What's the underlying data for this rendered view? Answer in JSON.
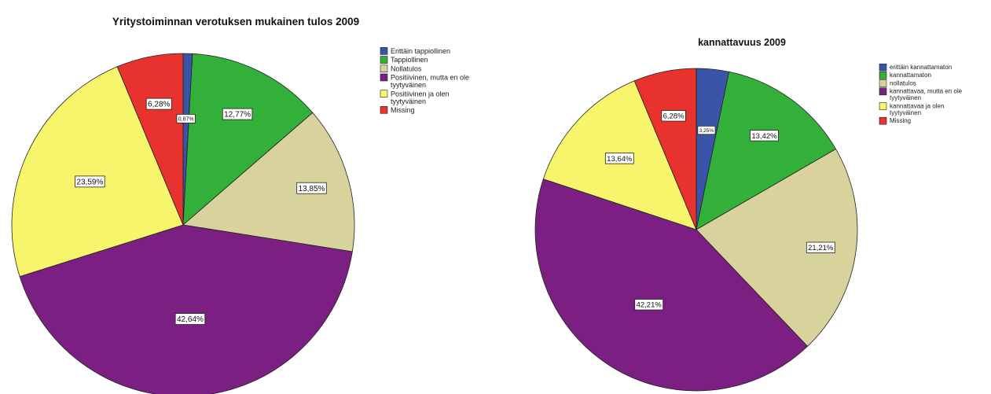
{
  "chart_data": [
    {
      "type": "pie",
      "title": "Yritystoiminnan verotuksen mukainen tulos 2009",
      "legend_position": "right",
      "slices": [
        {
          "label": "Erittäin tappiollinen",
          "value": 0.87,
          "display": "0,87%",
          "color": "#3a55a8"
        },
        {
          "label": "Tappiollinen",
          "value": 12.77,
          "display": "12,77%",
          "color": "#33b03a"
        },
        {
          "label": "Nollatulos",
          "value": 13.85,
          "display": "13,85%",
          "color": "#d8d29c"
        },
        {
          "label": "Positiivinen, mutta en ole tyytyväinen",
          "value": 42.64,
          "display": "42,64%",
          "color": "#7b2082"
        },
        {
          "label": "Positiivinen ja olen tyytyväinen",
          "value": 23.59,
          "display": "23,59%",
          "color": "#f7f56c"
        },
        {
          "label": "Missing",
          "value": 6.28,
          "display": "6,28%",
          "color": "#e8322d"
        }
      ]
    },
    {
      "type": "pie",
      "title": "kannattavuus 2009",
      "legend_position": "right",
      "slices": [
        {
          "label": "erittäin kannattamaton",
          "value": 3.25,
          "display": "3,25%",
          "color": "#3a55a8"
        },
        {
          "label": "kannattamaton",
          "value": 13.42,
          "display": "13,42%",
          "color": "#33b03a"
        },
        {
          "label": "nollatulos",
          "value": 21.21,
          "display": "21,21%",
          "color": "#d8d29c"
        },
        {
          "label": "kannattavaa, mutta en ole tyytyväinen",
          "value": 42.21,
          "display": "42,21%",
          "color": "#7b2082"
        },
        {
          "label": "kannattavaa ja olen tyytyväinen",
          "value": 13.64,
          "display": "13,64%",
          "color": "#f7f56c"
        },
        {
          "label": "Missing",
          "value": 6.28,
          "display": "6,28%",
          "color": "#e8322d"
        }
      ]
    }
  ]
}
